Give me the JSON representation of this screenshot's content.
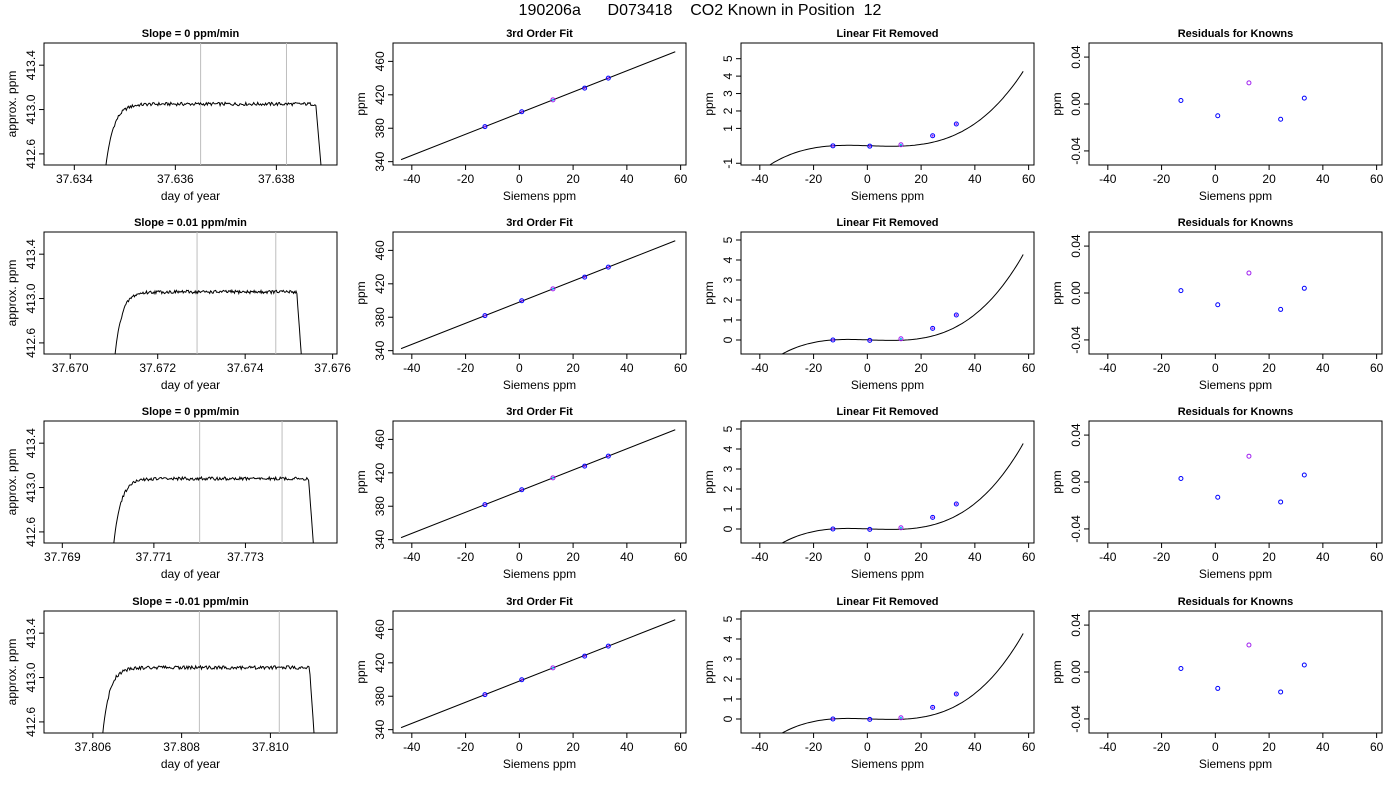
{
  "title": "190206a      D073418    CO2 Known in Position  12",
  "colors": {
    "trace": "#000000",
    "vline": "#bebebe",
    "point_main": "#0000ff",
    "point_alt": "#a020f0",
    "point_ref": "#00bfff",
    "axis": "#000000"
  },
  "chart_data": [
    {
      "type": "line",
      "title": "Slope =  0  ppm/min",
      "xlabel": "day of year",
      "ylabel": "approx. ppm",
      "xlim": [
        37.6334,
        37.6392
      ],
      "ylim": [
        412.5,
        413.6
      ],
      "xticks": [
        "37.634",
        "37.636",
        "37.638"
      ],
      "yticks": [
        "412.6",
        "413.0",
        "413.4"
      ],
      "vlines": [
        37.6365,
        37.6382
      ],
      "trace": {
        "x0": 37.6346,
        "x1": 37.6389,
        "rise": 0.00045,
        "plateau": 413.05,
        "fall": 0.00012
      }
    },
    {
      "type": "line",
      "title": "3rd Order Fit",
      "xlabel": "Siemens ppm",
      "ylabel": "ppm",
      "xlim": [
        -47,
        62
      ],
      "ylim": [
        336,
        482
      ],
      "xticks": [
        "-40",
        "-20",
        "0",
        "20",
        "40",
        "60"
      ],
      "yticks": [
        "340",
        "380",
        "420",
        "460"
      ],
      "points_x": [
        -12.8,
        0.9,
        12.5,
        24.3,
        33.1
      ],
      "points_y": [
        381.9,
        399.7,
        414.0,
        428.0,
        440.0
      ]
    },
    {
      "type": "line",
      "title": "Linear Fit Removed",
      "xlabel": "Siemens ppm",
      "ylabel": "ppm",
      "xlim": [
        -47,
        62
      ],
      "ylim": [
        -1.1,
        5.9
      ],
      "xticks": [
        "-40",
        "-20",
        "0",
        "20",
        "40",
        "60"
      ],
      "yticks": [
        "-1",
        "1",
        "2",
        "3",
        "4",
        "5"
      ],
      "points_x": [
        -12.8,
        0.9,
        12.5,
        24.3,
        33.1
      ],
      "points_y": [
        0.0,
        -0.02,
        0.06,
        0.58,
        1.25
      ]
    },
    {
      "type": "scatter",
      "title": "Residuals for Knowns",
      "xlabel": "Siemens ppm",
      "ylabel": "ppm",
      "xlim": [
        -47,
        62
      ],
      "ylim": [
        -0.052,
        0.052
      ],
      "xticks": [
        "-40",
        "-20",
        "0",
        "20",
        "40",
        "60"
      ],
      "yticks": [
        "-0.04",
        "0.00",
        "0.04"
      ],
      "points_x": [
        -12.8,
        0.9,
        12.5,
        24.3,
        33.1
      ],
      "points_y": [
        0.003,
        -0.01,
        0.018,
        -0.013,
        0.005
      ]
    },
    {
      "type": "line",
      "title": "Slope =  0.01  ppm/min",
      "xlabel": "day of year",
      "ylabel": "approx. ppm",
      "xlim": [
        37.6694,
        37.6761
      ],
      "ylim": [
        412.5,
        413.6
      ],
      "xticks": [
        "37.670",
        "37.672",
        "37.674",
        "37.676"
      ],
      "yticks": [
        "412.6",
        "413.0",
        "413.4"
      ],
      "vlines": [
        37.6729,
        37.6747
      ],
      "trace": {
        "x0": 37.671,
        "x1": 37.6753,
        "rise": 0.00045,
        "plateau": 413.06,
        "fall": 0.00012
      }
    },
    {
      "type": "line",
      "title": "3rd Order Fit",
      "xlabel": "Siemens ppm",
      "ylabel": "ppm",
      "xlim": [
        -47,
        62
      ],
      "ylim": [
        336,
        482
      ],
      "xticks": [
        "-40",
        "-20",
        "0",
        "20",
        "40",
        "60"
      ],
      "yticks": [
        "340",
        "380",
        "420",
        "460"
      ],
      "points_x": [
        -12.8,
        0.9,
        12.5,
        24.3,
        33.1
      ],
      "points_y": [
        381.9,
        399.7,
        414.0,
        428.0,
        440.0
      ]
    },
    {
      "type": "line",
      "title": "Linear Fit Removed",
      "xlabel": "Siemens ppm",
      "ylabel": "ppm",
      "xlim": [
        -47,
        62
      ],
      "ylim": [
        -0.7,
        5.4
      ],
      "xticks": [
        "-40",
        "-20",
        "0",
        "20",
        "40",
        "60"
      ],
      "yticks": [
        "0",
        "1",
        "2",
        "3",
        "4",
        "5"
      ],
      "points_x": [
        -12.8,
        0.9,
        12.5,
        24.3,
        33.1
      ],
      "points_y": [
        0.0,
        -0.02,
        0.06,
        0.58,
        1.25
      ]
    },
    {
      "type": "scatter",
      "title": "Residuals for Knowns",
      "xlabel": "Siemens ppm",
      "ylabel": "ppm",
      "xlim": [
        -47,
        62
      ],
      "ylim": [
        -0.052,
        0.052
      ],
      "xticks": [
        "-40",
        "-20",
        "0",
        "20",
        "40",
        "60"
      ],
      "yticks": [
        "-0.04",
        "0.00",
        "0.04"
      ],
      "points_x": [
        -12.8,
        0.9,
        12.5,
        24.3,
        33.1
      ],
      "points_y": [
        0.002,
        -0.01,
        0.017,
        -0.014,
        0.004
      ]
    },
    {
      "type": "line",
      "title": "Slope =  0  ppm/min",
      "xlabel": "day of year",
      "ylabel": "approx. ppm",
      "xlim": [
        37.7686,
        37.775
      ],
      "ylim": [
        412.5,
        413.6
      ],
      "xticks": [
        "37.769",
        "37.771",
        "37.773"
      ],
      "yticks": [
        "412.6",
        "413.0",
        "413.4"
      ],
      "vlines": [
        37.772,
        37.7738
      ],
      "trace": {
        "x0": 37.7701,
        "x1": 37.7745,
        "rise": 0.00045,
        "plateau": 413.08,
        "fall": 0.00012
      }
    },
    {
      "type": "line",
      "title": "3rd Order Fit",
      "xlabel": "Siemens ppm",
      "ylabel": "ppm",
      "xlim": [
        -47,
        62
      ],
      "ylim": [
        336,
        482
      ],
      "xticks": [
        "-40",
        "-20",
        "0",
        "20",
        "40",
        "60"
      ],
      "yticks": [
        "340",
        "380",
        "420",
        "460"
      ],
      "points_x": [
        -12.8,
        0.9,
        12.5,
        24.3,
        33.1
      ],
      "points_y": [
        381.9,
        399.7,
        414.0,
        428.0,
        440.0
      ]
    },
    {
      "type": "line",
      "title": "Linear Fit Removed",
      "xlabel": "Siemens ppm",
      "ylabel": "ppm",
      "xlim": [
        -47,
        62
      ],
      "ylim": [
        -0.7,
        5.4
      ],
      "xticks": [
        "-40",
        "-20",
        "0",
        "20",
        "40",
        "60"
      ],
      "yticks": [
        "0",
        "1",
        "2",
        "3",
        "4",
        "5"
      ],
      "points_x": [
        -12.8,
        0.9,
        12.5,
        24.3,
        33.1
      ],
      "points_y": [
        0.0,
        -0.02,
        0.06,
        0.58,
        1.25
      ]
    },
    {
      "type": "scatter",
      "title": "Residuals for Knowns",
      "xlabel": "Siemens ppm",
      "ylabel": "ppm",
      "xlim": [
        -47,
        62
      ],
      "ylim": [
        -0.052,
        0.052
      ],
      "xticks": [
        "-40",
        "-20",
        "0",
        "20",
        "40",
        "60"
      ],
      "yticks": [
        "-0.04",
        "0.00",
        "0.04"
      ],
      "points_x": [
        -12.8,
        0.9,
        12.5,
        24.3,
        33.1
      ],
      "points_y": [
        0.003,
        -0.013,
        0.022,
        -0.017,
        0.006
      ]
    },
    {
      "type": "line",
      "title": "Slope =  -0.01  ppm/min",
      "xlabel": "day of year",
      "ylabel": "approx. ppm",
      "xlim": [
        37.8049,
        37.8115
      ],
      "ylim": [
        412.5,
        413.6
      ],
      "xticks": [
        "37.806",
        "37.808",
        "37.810"
      ],
      "yticks": [
        "412.6",
        "413.0",
        "413.4"
      ],
      "vlines": [
        37.8084,
        37.8102
      ],
      "trace": {
        "x0": 37.8062,
        "x1": 37.811,
        "rise": 0.00045,
        "plateau": 413.09,
        "fall": 0.00012
      }
    },
    {
      "type": "line",
      "title": "3rd Order Fit",
      "xlabel": "Siemens ppm",
      "ylabel": "ppm",
      "xlim": [
        -47,
        62
      ],
      "ylim": [
        336,
        482
      ],
      "xticks": [
        "-40",
        "-20",
        "0",
        "20",
        "40",
        "60"
      ],
      "yticks": [
        "340",
        "380",
        "420",
        "460"
      ],
      "points_x": [
        -12.8,
        0.9,
        12.5,
        24.3,
        33.1
      ],
      "points_y": [
        381.9,
        399.7,
        414.0,
        428.0,
        440.0
      ]
    },
    {
      "type": "line",
      "title": "Linear Fit Removed",
      "xlabel": "Siemens ppm",
      "ylabel": "ppm",
      "xlim": [
        -47,
        62
      ],
      "ylim": [
        -0.7,
        5.4
      ],
      "xticks": [
        "-40",
        "-20",
        "0",
        "20",
        "40",
        "60"
      ],
      "yticks": [
        "0",
        "1",
        "2",
        "3",
        "4",
        "5"
      ],
      "points_x": [
        -12.8,
        0.9,
        12.5,
        24.3,
        33.1
      ],
      "points_y": [
        0.0,
        -0.02,
        0.06,
        0.58,
        1.25
      ]
    },
    {
      "type": "scatter",
      "title": "Residuals for Knowns",
      "xlabel": "Siemens ppm",
      "ylabel": "ppm",
      "xlim": [
        -47,
        62
      ],
      "ylim": [
        -0.052,
        0.052
      ],
      "xticks": [
        "-40",
        "-20",
        "0",
        "20",
        "40",
        "60"
      ],
      "yticks": [
        "-0.04",
        "0.00",
        "0.04"
      ],
      "points_x": [
        -12.8,
        0.9,
        12.5,
        24.3,
        33.1
      ],
      "points_y": [
        0.003,
        -0.014,
        0.023,
        -0.017,
        0.006
      ]
    }
  ]
}
